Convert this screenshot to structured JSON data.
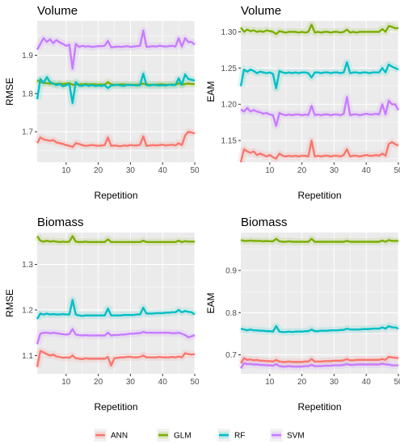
{
  "chart_data": [
    {
      "type": "line",
      "title": "Volume",
      "xlabel": "Repetition",
      "ylabel": "RMSE",
      "xlim": [
        1,
        50
      ],
      "ylim": [
        1.62,
        1.99
      ],
      "xticks": [
        10,
        20,
        30,
        40,
        50
      ],
      "yticks": [
        1.7,
        1.8,
        1.9
      ],
      "ytick_labels": [
        "1.7",
        "1.8",
        "1.9"
      ],
      "series": [
        {
          "name": "GLM",
          "color": "#7CAE00",
          "values": [
            1.835,
            1.83,
            1.828,
            1.827,
            1.826,
            1.826,
            1.825,
            1.826,
            1.825,
            1.826,
            1.827,
            1.823,
            1.824,
            1.824,
            1.824,
            1.825,
            1.824,
            1.824,
            1.824,
            1.823,
            1.824,
            1.823,
            1.83,
            1.824,
            1.823,
            1.823,
            1.824,
            1.824,
            1.823,
            1.823,
            1.823,
            1.823,
            1.824,
            1.826,
            1.824,
            1.823,
            1.823,
            1.823,
            1.824,
            1.824,
            1.823,
            1.823,
            1.824,
            1.823,
            1.827,
            1.823,
            1.825,
            1.826,
            1.825,
            1.825
          ]
        },
        {
          "name": "RF",
          "color": "#00BFC4",
          "values": [
            1.785,
            1.838,
            1.828,
            1.843,
            1.83,
            1.826,
            1.822,
            1.825,
            1.819,
            1.822,
            1.825,
            1.775,
            1.83,
            1.821,
            1.82,
            1.823,
            1.82,
            1.822,
            1.82,
            1.821,
            1.82,
            1.822,
            1.814,
            1.821,
            1.822,
            1.823,
            1.821,
            1.82,
            1.823,
            1.822,
            1.822,
            1.821,
            1.822,
            1.852,
            1.822,
            1.821,
            1.823,
            1.822,
            1.821,
            1.822,
            1.821,
            1.823,
            1.822,
            1.822,
            1.84,
            1.823,
            1.85,
            1.838,
            1.836,
            1.834
          ]
        },
        {
          "name": "SVM",
          "color": "#C77CFF",
          "values": [
            1.915,
            1.93,
            1.945,
            1.935,
            1.942,
            1.932,
            1.94,
            1.934,
            1.93,
            1.925,
            1.928,
            1.865,
            1.93,
            1.922,
            1.925,
            1.923,
            1.924,
            1.922,
            1.923,
            1.924,
            1.924,
            1.925,
            1.938,
            1.921,
            1.922,
            1.923,
            1.922,
            1.923,
            1.924,
            1.922,
            1.923,
            1.924,
            1.925,
            1.965,
            1.922,
            1.923,
            1.924,
            1.923,
            1.925,
            1.924,
            1.923,
            1.924,
            1.925,
            1.923,
            1.945,
            1.923,
            1.945,
            1.935,
            1.935,
            1.928
          ]
        },
        {
          "name": "ANN",
          "color": "#F8766D",
          "values": [
            1.67,
            1.685,
            1.68,
            1.678,
            1.676,
            1.678,
            1.672,
            1.67,
            1.668,
            1.665,
            1.663,
            1.66,
            1.67,
            1.668,
            1.665,
            1.663,
            1.664,
            1.665,
            1.664,
            1.663,
            1.664,
            1.665,
            1.685,
            1.663,
            1.664,
            1.663,
            1.662,
            1.664,
            1.663,
            1.665,
            1.664,
            1.664,
            1.666,
            1.688,
            1.663,
            1.664,
            1.665,
            1.664,
            1.665,
            1.666,
            1.664,
            1.665,
            1.666,
            1.664,
            1.67,
            1.665,
            1.69,
            1.7,
            1.698,
            1.695
          ]
        }
      ]
    },
    {
      "type": "line",
      "title": "Volume",
      "xlabel": "Repetition",
      "ylabel": "EAM",
      "xlim": [
        1,
        50
      ],
      "ylim": [
        1.12,
        1.315
      ],
      "xticks": [
        10,
        20,
        30,
        40,
        50
      ],
      "yticks": [
        1.15,
        1.2,
        1.25,
        1.3
      ],
      "ytick_labels": [
        "1.15",
        "1.20",
        "1.25",
        "1.30"
      ],
      "series": [
        {
          "name": "GLM",
          "color": "#7CAE00",
          "values": [
            1.306,
            1.3,
            1.303,
            1.301,
            1.302,
            1.3,
            1.301,
            1.3,
            1.302,
            1.301,
            1.3,
            1.297,
            1.301,
            1.3,
            1.299,
            1.3,
            1.3,
            1.3,
            1.299,
            1.3,
            1.299,
            1.3,
            1.31,
            1.299,
            1.3,
            1.299,
            1.3,
            1.3,
            1.299,
            1.3,
            1.3,
            1.299,
            1.3,
            1.303,
            1.299,
            1.3,
            1.299,
            1.3,
            1.3,
            1.3,
            1.3,
            1.3,
            1.3,
            1.3,
            1.304,
            1.3,
            1.308,
            1.307,
            1.305,
            1.305
          ]
        },
        {
          "name": "RF",
          "color": "#00BFC4",
          "values": [
            1.225,
            1.248,
            1.245,
            1.248,
            1.246,
            1.243,
            1.245,
            1.244,
            1.243,
            1.244,
            1.242,
            1.222,
            1.246,
            1.244,
            1.243,
            1.244,
            1.243,
            1.244,
            1.243,
            1.244,
            1.244,
            1.243,
            1.237,
            1.244,
            1.244,
            1.243,
            1.244,
            1.244,
            1.243,
            1.244,
            1.244,
            1.243,
            1.244,
            1.258,
            1.243,
            1.244,
            1.244,
            1.243,
            1.244,
            1.244,
            1.243,
            1.244,
            1.244,
            1.244,
            1.25,
            1.244,
            1.255,
            1.252,
            1.25,
            1.248
          ]
        },
        {
          "name": "SVM",
          "color": "#C77CFF",
          "values": [
            1.193,
            1.19,
            1.195,
            1.19,
            1.192,
            1.19,
            1.189,
            1.187,
            1.188,
            1.186,
            1.185,
            1.17,
            1.188,
            1.186,
            1.185,
            1.186,
            1.185,
            1.186,
            1.186,
            1.185,
            1.186,
            1.185,
            1.198,
            1.185,
            1.186,
            1.185,
            1.186,
            1.186,
            1.185,
            1.186,
            1.186,
            1.185,
            1.187,
            1.21,
            1.185,
            1.186,
            1.186,
            1.185,
            1.186,
            1.187,
            1.186,
            1.186,
            1.187,
            1.186,
            1.2,
            1.186,
            1.205,
            1.2,
            1.2,
            1.192
          ]
        },
        {
          "name": "ANN",
          "color": "#F8766D",
          "values": [
            1.12,
            1.138,
            1.135,
            1.133,
            1.135,
            1.13,
            1.132,
            1.13,
            1.128,
            1.13,
            1.127,
            1.125,
            1.132,
            1.129,
            1.128,
            1.129,
            1.128,
            1.129,
            1.128,
            1.129,
            1.129,
            1.128,
            1.15,
            1.128,
            1.129,
            1.128,
            1.129,
            1.129,
            1.128,
            1.129,
            1.129,
            1.128,
            1.13,
            1.138,
            1.128,
            1.129,
            1.129,
            1.128,
            1.129,
            1.13,
            1.129,
            1.129,
            1.13,
            1.129,
            1.132,
            1.129,
            1.145,
            1.148,
            1.145,
            1.143
          ]
        }
      ]
    },
    {
      "type": "line",
      "title": "Biomass",
      "xlabel": "Repetition",
      "ylabel": "RMSE",
      "xlim": [
        1,
        50
      ],
      "ylim": [
        1.06,
        1.37
      ],
      "xticks": [
        10,
        20,
        30,
        40,
        50
      ],
      "yticks": [
        1.1,
        1.2,
        1.3
      ],
      "ytick_labels": [
        "1.1",
        "1.2",
        "1.3"
      ],
      "series": [
        {
          "name": "GLM",
          "color": "#7CAE00",
          "values": [
            1.362,
            1.352,
            1.35,
            1.352,
            1.35,
            1.351,
            1.35,
            1.349,
            1.35,
            1.349,
            1.35,
            1.362,
            1.35,
            1.349,
            1.349,
            1.35,
            1.349,
            1.349,
            1.349,
            1.349,
            1.349,
            1.349,
            1.355,
            1.349,
            1.349,
            1.349,
            1.349,
            1.349,
            1.349,
            1.349,
            1.349,
            1.349,
            1.349,
            1.352,
            1.349,
            1.349,
            1.349,
            1.349,
            1.349,
            1.349,
            1.349,
            1.349,
            1.349,
            1.349,
            1.352,
            1.349,
            1.351,
            1.35,
            1.35,
            1.35
          ]
        },
        {
          "name": "RF",
          "color": "#00BFC4",
          "values": [
            1.18,
            1.192,
            1.19,
            1.192,
            1.19,
            1.191,
            1.19,
            1.19,
            1.191,
            1.19,
            1.19,
            1.222,
            1.19,
            1.188,
            1.187,
            1.188,
            1.188,
            1.188,
            1.188,
            1.188,
            1.188,
            1.188,
            1.203,
            1.188,
            1.188,
            1.188,
            1.188,
            1.189,
            1.189,
            1.189,
            1.189,
            1.19,
            1.19,
            1.205,
            1.192,
            1.192,
            1.192,
            1.193,
            1.193,
            1.193,
            1.194,
            1.194,
            1.195,
            1.195,
            1.2,
            1.195,
            1.198,
            1.196,
            1.195,
            1.19
          ]
        },
        {
          "name": "SVM",
          "color": "#C77CFF",
          "values": [
            1.125,
            1.148,
            1.15,
            1.15,
            1.149,
            1.15,
            1.149,
            1.148,
            1.147,
            1.146,
            1.147,
            1.158,
            1.146,
            1.145,
            1.144,
            1.145,
            1.144,
            1.144,
            1.144,
            1.144,
            1.144,
            1.144,
            1.15,
            1.144,
            1.145,
            1.145,
            1.146,
            1.146,
            1.147,
            1.148,
            1.148,
            1.149,
            1.149,
            1.152,
            1.15,
            1.15,
            1.15,
            1.15,
            1.15,
            1.15,
            1.15,
            1.15,
            1.149,
            1.149,
            1.15,
            1.148,
            1.145,
            1.14,
            1.142,
            1.145
          ]
        },
        {
          "name": "ANN",
          "color": "#F8766D",
          "values": [
            1.075,
            1.11,
            1.107,
            1.103,
            1.1,
            1.102,
            1.098,
            1.097,
            1.095,
            1.096,
            1.095,
            1.1,
            1.094,
            1.093,
            1.092,
            1.094,
            1.093,
            1.093,
            1.093,
            1.093,
            1.093,
            1.093,
            1.097,
            1.078,
            1.094,
            1.095,
            1.096,
            1.096,
            1.097,
            1.097,
            1.096,
            1.096,
            1.097,
            1.1,
            1.096,
            1.096,
            1.096,
            1.096,
            1.097,
            1.096,
            1.096,
            1.096,
            1.097,
            1.096,
            1.098,
            1.096,
            1.105,
            1.103,
            1.102,
            1.103
          ]
        }
      ]
    },
    {
      "type": "line",
      "title": "Biomass",
      "xlabel": "Repetition",
      "ylabel": "EAM",
      "xlim": [
        1,
        50
      ],
      "ylim": [
        0.655,
        0.99
      ],
      "xticks": [
        10,
        20,
        30,
        40,
        50
      ],
      "yticks": [
        0.7,
        0.8,
        0.9
      ],
      "ytick_labels": [
        "0.7",
        "0.8",
        "0.9"
      ],
      "series": [
        {
          "name": "GLM",
          "color": "#7CAE00",
          "values": [
            0.972,
            0.97,
            0.97,
            0.971,
            0.97,
            0.97,
            0.97,
            0.969,
            0.97,
            0.969,
            0.969,
            0.975,
            0.969,
            0.968,
            0.968,
            0.969,
            0.968,
            0.968,
            0.968,
            0.968,
            0.968,
            0.968,
            0.975,
            0.968,
            0.968,
            0.968,
            0.968,
            0.968,
            0.968,
            0.968,
            0.968,
            0.968,
            0.968,
            0.97,
            0.968,
            0.968,
            0.968,
            0.968,
            0.968,
            0.968,
            0.968,
            0.968,
            0.968,
            0.968,
            0.971,
            0.968,
            0.972,
            0.97,
            0.97,
            0.97
          ]
        },
        {
          "name": "RF",
          "color": "#00BFC4",
          "values": [
            0.762,
            0.76,
            0.758,
            0.76,
            0.758,
            0.758,
            0.757,
            0.757,
            0.756,
            0.756,
            0.755,
            0.768,
            0.755,
            0.754,
            0.754,
            0.755,
            0.754,
            0.755,
            0.755,
            0.755,
            0.756,
            0.756,
            0.76,
            0.756,
            0.756,
            0.757,
            0.757,
            0.757,
            0.758,
            0.758,
            0.758,
            0.759,
            0.759,
            0.762,
            0.76,
            0.76,
            0.76,
            0.76,
            0.761,
            0.761,
            0.761,
            0.762,
            0.762,
            0.762,
            0.765,
            0.762,
            0.768,
            0.765,
            0.765,
            0.762
          ]
        },
        {
          "name": "SVM",
          "color": "#C77CFF",
          "values": [
            0.668,
            0.68,
            0.678,
            0.678,
            0.677,
            0.677,
            0.676,
            0.676,
            0.675,
            0.675,
            0.674,
            0.678,
            0.673,
            0.672,
            0.672,
            0.673,
            0.672,
            0.672,
            0.672,
            0.672,
            0.673,
            0.673,
            0.676,
            0.673,
            0.673,
            0.673,
            0.674,
            0.674,
            0.674,
            0.675,
            0.675,
            0.675,
            0.676,
            0.678,
            0.676,
            0.676,
            0.677,
            0.677,
            0.677,
            0.677,
            0.677,
            0.677,
            0.677,
            0.677,
            0.679,
            0.677,
            0.677,
            0.675,
            0.675,
            0.675
          ]
        },
        {
          "name": "ANN",
          "color": "#F8766D",
          "values": [
            0.68,
            0.692,
            0.688,
            0.689,
            0.687,
            0.688,
            0.686,
            0.686,
            0.685,
            0.685,
            0.684,
            0.688,
            0.684,
            0.683,
            0.683,
            0.684,
            0.683,
            0.683,
            0.683,
            0.683,
            0.684,
            0.684,
            0.69,
            0.684,
            0.684,
            0.684,
            0.685,
            0.685,
            0.685,
            0.686,
            0.686,
            0.686,
            0.687,
            0.69,
            0.687,
            0.687,
            0.688,
            0.688,
            0.688,
            0.688,
            0.688,
            0.688,
            0.688,
            0.688,
            0.69,
            0.688,
            0.695,
            0.694,
            0.693,
            0.692
          ]
        }
      ]
    }
  ],
  "legend": {
    "placement": "bottom",
    "entries": [
      {
        "name": "ANN",
        "color": "#F8766D"
      },
      {
        "name": "GLM",
        "color": "#7CAE00"
      },
      {
        "name": "RF",
        "color": "#00BFC4"
      },
      {
        "name": "SVM",
        "color": "#C77CFF"
      }
    ]
  },
  "panel_background": "#EBEBEB",
  "grid_color": "#FFFFFF"
}
